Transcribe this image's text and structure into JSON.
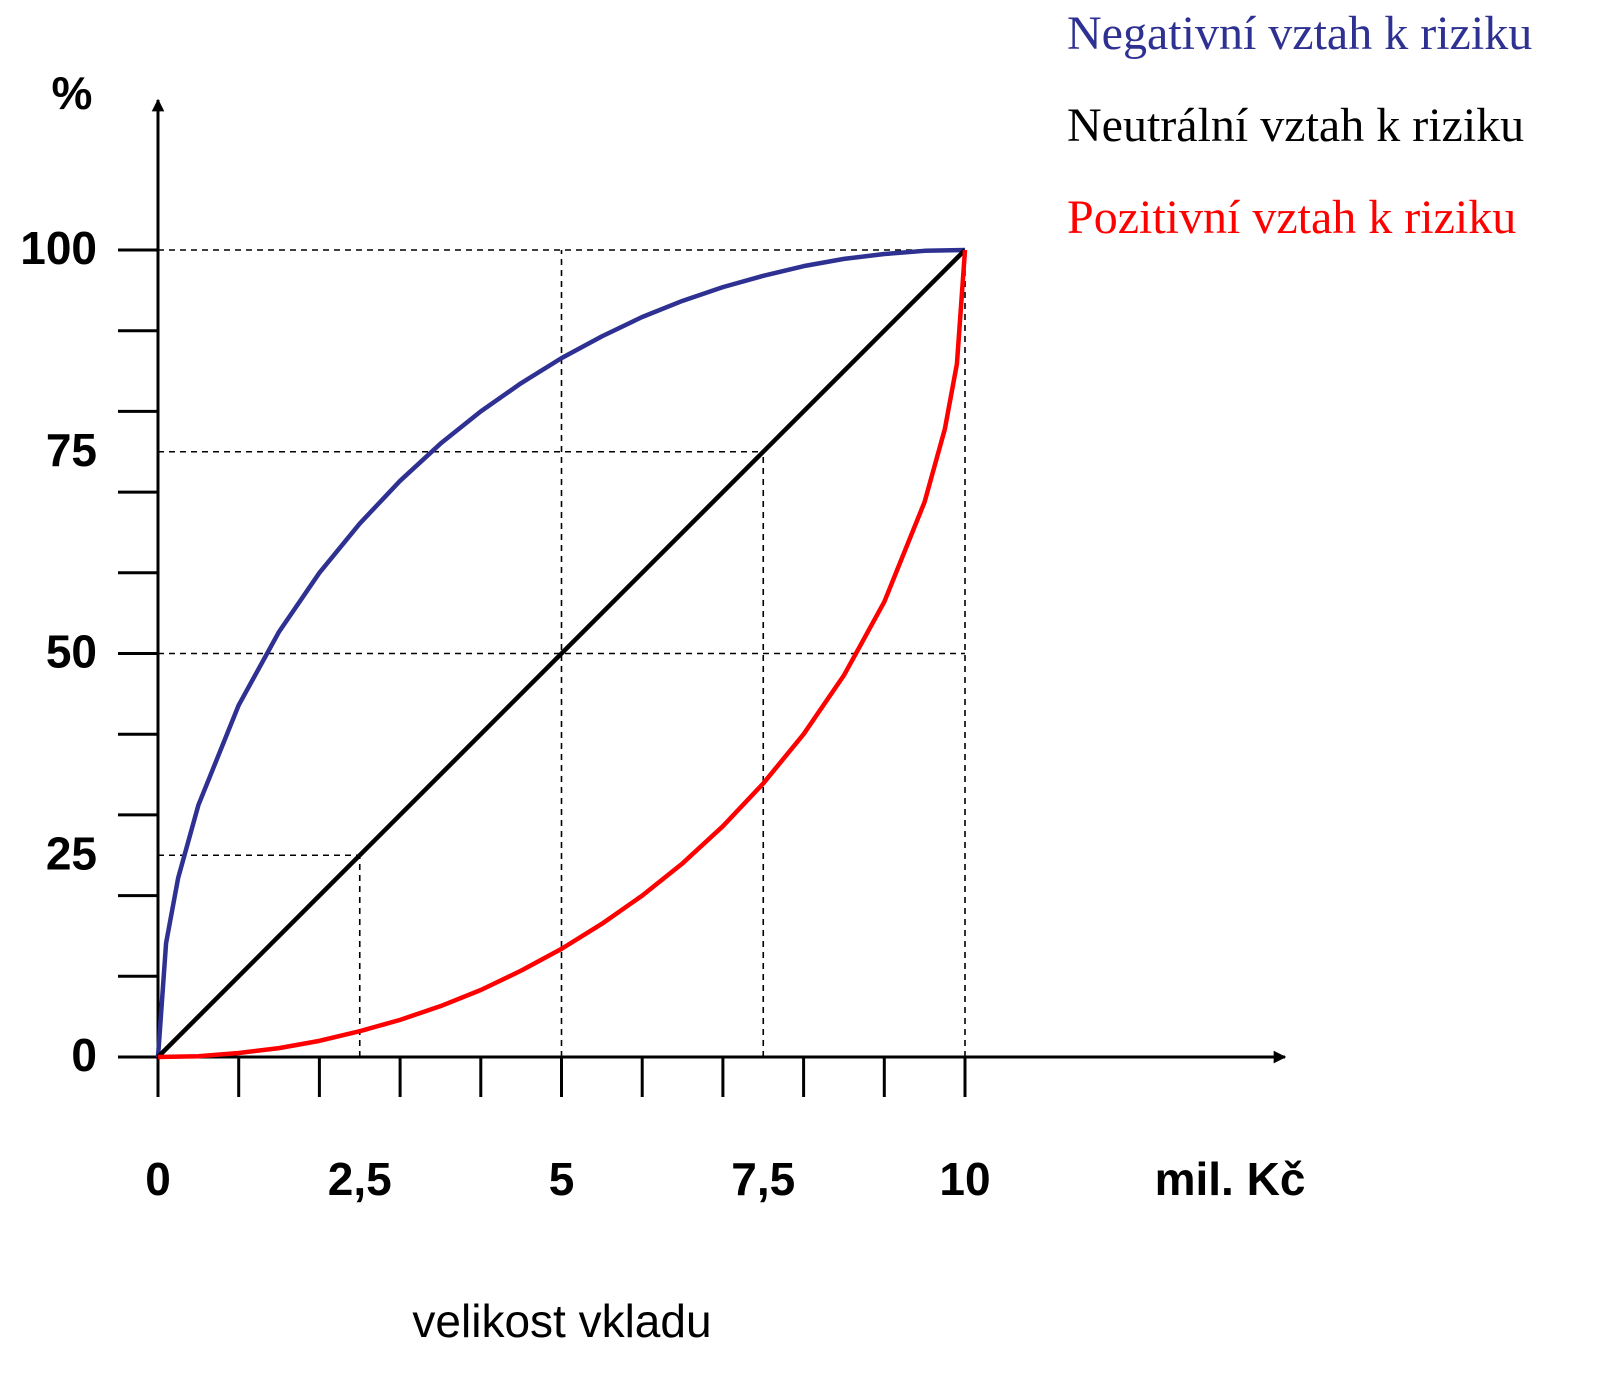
{
  "chart_data": {
    "type": "line",
    "x_label": "velikost vkladu",
    "x_unit": "mil. Kč",
    "y_unit": "%",
    "xlim": [
      0,
      10
    ],
    "ylim": [
      0,
      100
    ],
    "xticks": [
      0,
      {
        "value": 2.5,
        "label": "2,5"
      },
      5,
      {
        "value": 7.5,
        "label": "7,5"
      },
      10
    ],
    "yticks": [
      0,
      25,
      50,
      75,
      100
    ],
    "x_minor_ticks": [
      0,
      1,
      2,
      3,
      4,
      5,
      6,
      7,
      8,
      9,
      10
    ],
    "y_minor_ticks": [
      0,
      10,
      20,
      30,
      40,
      50,
      60,
      70,
      80,
      90,
      100
    ],
    "h_guides": [
      {
        "y": 25,
        "x_end": 2.5
      },
      {
        "y": 50,
        "x_end": 10
      },
      {
        "y": 75,
        "x_end": 7.5
      },
      {
        "y": 100,
        "x_end": 10
      }
    ],
    "v_guides": [
      {
        "x": 2.5,
        "y_end": 25
      },
      {
        "x": 5,
        "y_end": 100
      },
      {
        "x": 7.5,
        "y_end": 75
      },
      {
        "x": 10,
        "y_end": 100
      }
    ],
    "series": [
      {
        "name": "Negativní vztah k riziku",
        "color": "#2e3192",
        "x": [
          0,
          0.1,
          0.25,
          0.5,
          1,
          1.5,
          2,
          2.5,
          3,
          3.5,
          4,
          4.5,
          5,
          5.5,
          6,
          6.5,
          7,
          7.5,
          8,
          8.5,
          9,
          9.5,
          10
        ],
        "values": [
          0,
          14.1,
          22.2,
          31.2,
          43.6,
          52.7,
          60,
          66.1,
          71.4,
          76.0,
          80,
          83.5,
          86.6,
          89.3,
          91.7,
          93.7,
          95.4,
          96.8,
          98.0,
          98.9,
          99.5,
          99.9,
          100
        ]
      },
      {
        "name": "Neutrální vztah k riziku",
        "color": "#000000",
        "x": [
          0,
          10
        ],
        "values": [
          0,
          100
        ]
      },
      {
        "name": "Pozitivní vztah k riziku",
        "color": "#ff0000",
        "x": [
          0,
          0.5,
          1,
          1.5,
          2,
          2.5,
          3,
          3.5,
          4,
          4.5,
          5,
          5.5,
          6,
          6.5,
          7,
          7.5,
          8,
          8.5,
          9,
          9.5,
          9.75,
          9.9,
          10
        ],
        "values": [
          0,
          0.1,
          0.5,
          1.1,
          2.0,
          3.2,
          4.6,
          6.3,
          8.3,
          10.7,
          13.4,
          16.5,
          20,
          24.0,
          28.6,
          33.9,
          40,
          47.3,
          56.4,
          68.8,
          77.8,
          85.9,
          100
        ]
      }
    ]
  }
}
